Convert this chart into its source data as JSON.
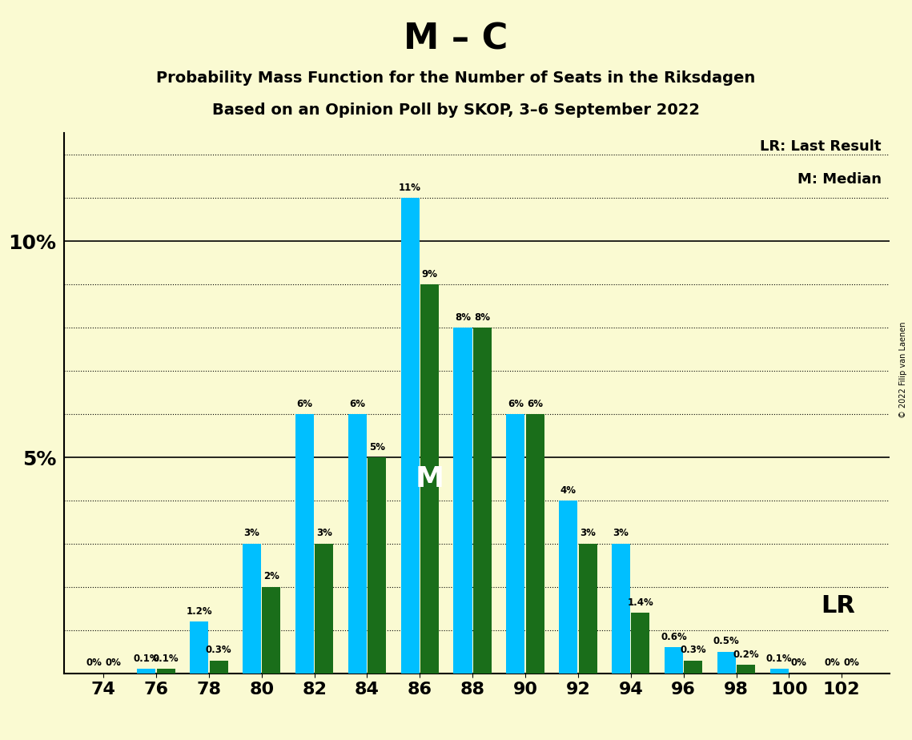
{
  "title_main": "M – C",
  "title_sub1": "Probability Mass Function for the Number of Seats in the Riksdagen",
  "title_sub2": "Based on an Opinion Poll by SKOP, 3–6 September 2022",
  "copyright": "© 2022 Filip van Laenen",
  "seats": [
    74,
    76,
    78,
    80,
    82,
    84,
    86,
    88,
    90,
    92,
    94,
    96,
    98,
    100,
    102
  ],
  "cyan_values": [
    0.0,
    0.1,
    1.2,
    3.0,
    6.0,
    6.0,
    11.0,
    8.0,
    6.0,
    4.0,
    3.0,
    0.6,
    0.5,
    0.1,
    0.0
  ],
  "green_values": [
    0.0,
    0.1,
    0.3,
    2.0,
    3.0,
    5.0,
    9.0,
    8.0,
    6.0,
    3.0,
    1.4,
    0.3,
    0.2,
    0.0,
    0.0
  ],
  "cyan_labels": [
    "0%",
    "0.1%",
    "1.2%",
    "3%",
    "6%",
    "6%",
    "11%",
    "8%",
    "6%",
    "4%",
    "3%",
    "0.6%",
    "0.5%",
    "0.1%",
    "0%"
  ],
  "green_labels": [
    "0%",
    "0.1%",
    "0.3%",
    "2%",
    "3%",
    "5%",
    "9%",
    "8%",
    "6%",
    "3%",
    "1.4%",
    "0.3%",
    "0.2%",
    "0%",
    "0%"
  ],
  "cyan_color": "#00BFFF",
  "green_color": "#1a6e1a",
  "background_color": "#FAFAD2",
  "ylim": [
    0,
    12.5
  ],
  "solid_yticks": [
    5.0,
    10.0
  ],
  "median_seat_idx": 6,
  "lr_seat_idx": 10,
  "bar_width": 0.7
}
